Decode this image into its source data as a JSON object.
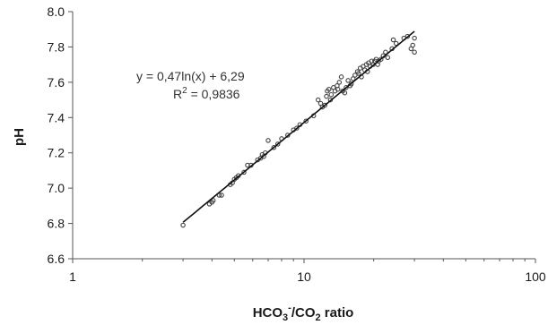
{
  "chart_data": {
    "type": "scatter",
    "x_scale": "log",
    "xlim": [
      1,
      100
    ],
    "ylim": [
      6.6,
      8.0
    ],
    "x_ticks": [
      1,
      10,
      100
    ],
    "x_tick_labels": [
      "1",
      "10",
      "100"
    ],
    "y_ticks": [
      6.6,
      6.8,
      7.0,
      7.2,
      7.4,
      7.6,
      7.8,
      8.0
    ],
    "y_tick_labels": [
      "6.6",
      "6.8",
      "7.0",
      "7.2",
      "7.4",
      "7.6",
      "7.8",
      "8.0"
    ],
    "xlabel": {
      "main": "HCO",
      "sub": "3",
      "sup": "-",
      "rest1": "/CO",
      "sub2": "2",
      "rest2": " ratio"
    },
    "ylabel": "pH",
    "grid": false,
    "legend": "none",
    "trendline": {
      "type": "logarithmic",
      "a": 0.47,
      "b": 6.29,
      "x_range": [
        3.0,
        30.0
      ],
      "equation_label": "y = 0,47ln(x) + 6,29",
      "r2_label": {
        "main": "R",
        "sup": "2",
        "rest": " = 0,9836"
      }
    },
    "colors": {
      "points": "#444444",
      "line": "#111111",
      "axis": "#555555"
    },
    "series": [
      {
        "x": [
          3.0,
          3.9,
          4.0,
          4.05,
          4.3,
          4.4,
          4.8,
          4.9,
          5.0,
          5.1,
          5.2,
          5.5,
          5.7,
          5.9,
          6.3,
          6.5,
          6.6,
          6.7,
          6.8,
          7.0,
          7.4,
          7.7,
          8.0,
          8.5,
          9.0,
          9.3,
          9.6,
          10.2,
          11.0,
          11.5,
          11.8,
          12.0,
          12.3,
          12.5,
          12.6,
          12.8,
          13.0,
          13.1,
          13.4,
          13.6,
          13.9,
          14.0,
          14.2,
          14.5,
          14.7,
          15.0,
          15.2,
          15.5,
          15.8,
          16.0,
          16.3,
          16.6,
          17.0,
          17.2,
          17.5,
          17.7,
          18.0,
          18.3,
          18.6,
          18.8,
          19.0,
          19.3,
          19.6,
          19.9,
          20.2,
          20.5,
          20.8,
          21.0,
          21.5,
          22.0,
          22.5,
          23.0,
          24.0,
          24.3,
          25.0,
          27.0,
          28.0,
          29.0,
          29.5,
          30.0,
          30.0
        ],
        "y": [
          6.79,
          6.91,
          6.92,
          6.93,
          6.96,
          6.96,
          7.02,
          7.03,
          7.05,
          7.06,
          7.07,
          7.09,
          7.13,
          7.13,
          7.16,
          7.17,
          7.19,
          7.18,
          7.2,
          7.27,
          7.23,
          7.25,
          7.28,
          7.3,
          7.33,
          7.34,
          7.36,
          7.38,
          7.41,
          7.5,
          7.48,
          7.46,
          7.47,
          7.52,
          7.55,
          7.56,
          7.5,
          7.53,
          7.57,
          7.55,
          7.58,
          7.56,
          7.6,
          7.63,
          7.55,
          7.54,
          7.57,
          7.61,
          7.58,
          7.59,
          7.62,
          7.64,
          7.66,
          7.65,
          7.68,
          7.63,
          7.69,
          7.67,
          7.7,
          7.66,
          7.71,
          7.69,
          7.72,
          7.7,
          7.72,
          7.73,
          7.7,
          7.72,
          7.73,
          7.75,
          7.77,
          7.74,
          7.79,
          7.84,
          7.82,
          7.85,
          7.86,
          7.79,
          7.81,
          7.77,
          7.85
        ]
      }
    ]
  }
}
